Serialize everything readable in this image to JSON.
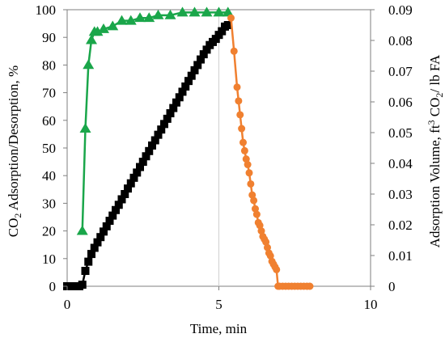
{
  "chart_data": {
    "type": "line",
    "xlabel": "Time, min",
    "ylabel_left": "CO2 Adsorption/Desorption, %",
    "ylabel_right": "Adsorption Volume, ft3 CO2/ lb FA",
    "xlim": [
      0,
      10
    ],
    "ylim_left": [
      0,
      100
    ],
    "ylim_right": [
      0,
      0.09
    ],
    "x_ticks": [
      "0",
      "5",
      "10"
    ],
    "y_ticks_left": [
      "0",
      "10",
      "20",
      "30",
      "40",
      "50",
      "60",
      "70",
      "80",
      "90",
      "100"
    ],
    "y_ticks_right": [
      "0",
      "0.01",
      "0.02",
      "0.03",
      "0.04",
      "0.05",
      "0.06",
      "0.07",
      "0.08",
      "0.09"
    ],
    "vertical_gridline_x": 5,
    "series": [
      {
        "axis": "left",
        "color": "#1aa64a",
        "marker": "triangle",
        "x": [
          0.5,
          0.6,
          0.7,
          0.8,
          0.9,
          1.0,
          1.2,
          1.5,
          1.8,
          2.1,
          2.4,
          2.7,
          3.0,
          3.4,
          3.8,
          4.2,
          4.6,
          5.0,
          5.3
        ],
        "y": [
          20,
          57,
          80,
          89,
          92,
          92,
          93,
          94,
          96,
          96,
          97,
          97,
          98,
          98,
          99,
          99,
          99,
          99,
          99
        ]
      },
      {
        "axis": "right",
        "color": "#000000",
        "marker": "square",
        "x": [
          0,
          0.1,
          0.2,
          0.3,
          0.4,
          0.5,
          0.6,
          0.7,
          0.8,
          0.9,
          1.0,
          1.1,
          1.2,
          1.3,
          1.4,
          1.5,
          1.6,
          1.7,
          1.8,
          1.9,
          2.0,
          2.1,
          2.2,
          2.3,
          2.4,
          2.5,
          2.6,
          2.7,
          2.8,
          2.9,
          3.0,
          3.1,
          3.2,
          3.3,
          3.4,
          3.5,
          3.6,
          3.7,
          3.8,
          3.9,
          4.0,
          4.1,
          4.2,
          4.3,
          4.4,
          4.5,
          4.6,
          4.7,
          4.8,
          4.9,
          5.0,
          5.1,
          5.2,
          5.3
        ],
        "y": [
          0,
          0,
          0,
          0,
          0,
          0.0005,
          0.005,
          0.008,
          0.0105,
          0.0125,
          0.0143,
          0.016,
          0.0178,
          0.0195,
          0.0213,
          0.023,
          0.0248,
          0.0265,
          0.0283,
          0.03,
          0.0318,
          0.0335,
          0.0353,
          0.037,
          0.0388,
          0.0405,
          0.0423,
          0.044,
          0.0458,
          0.0475,
          0.0493,
          0.051,
          0.0528,
          0.0545,
          0.0563,
          0.058,
          0.0598,
          0.0615,
          0.0633,
          0.065,
          0.0668,
          0.0685,
          0.0703,
          0.072,
          0.0738,
          0.0755,
          0.077,
          0.0785,
          0.0795,
          0.0805,
          0.0818,
          0.083,
          0.0845,
          0.085
        ]
      },
      {
        "axis": "left",
        "color": "#f08030",
        "marker": "circle",
        "x": [
          5.4,
          5.5,
          5.6,
          5.65,
          5.7,
          5.75,
          5.8,
          5.85,
          5.9,
          5.95,
          6.0,
          6.05,
          6.1,
          6.15,
          6.2,
          6.25,
          6.3,
          6.35,
          6.4,
          6.45,
          6.5,
          6.55,
          6.6,
          6.65,
          6.7,
          6.75,
          6.8,
          6.85,
          6.9,
          6.95,
          7.0,
          7.1,
          7.2,
          7.3,
          7.4,
          7.5,
          7.6,
          7.7,
          7.8,
          7.9,
          8.0
        ],
        "y": [
          97,
          85,
          72,
          67,
          62,
          57,
          52,
          49,
          46,
          44,
          41,
          37,
          33,
          31,
          28,
          26,
          23,
          22,
          20,
          18,
          17,
          16,
          14,
          12,
          11,
          9,
          8,
          7,
          6,
          0,
          0,
          0,
          0,
          0,
          0,
          0,
          0,
          0,
          0,
          0,
          0
        ]
      }
    ]
  }
}
